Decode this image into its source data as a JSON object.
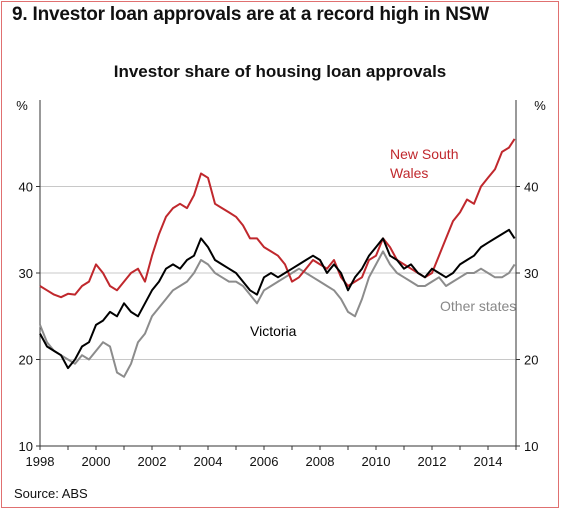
{
  "headline": "9. Investor loan approvals are at a record high in NSW",
  "source": "Source: ABS",
  "chart_data": {
    "type": "line",
    "title": "Investor share of housing loan approvals",
    "y_unit_left": "%",
    "y_unit_right": "%",
    "ylim": [
      10,
      50
    ],
    "yticks": [
      10,
      20,
      30,
      40
    ],
    "xlim": [
      1998,
      2015
    ],
    "xticks": [
      "1998",
      "2000",
      "2002",
      "2004",
      "2006",
      "2008",
      "2010",
      "2012",
      "2014"
    ],
    "grid": true,
    "colors": {
      "nsw": "#c0282d",
      "vic": "#000000",
      "other": "#8c8c8c",
      "grid": "#c8c8c8"
    },
    "labels": {
      "nsw": [
        "New South",
        "Wales"
      ],
      "vic": "Victoria",
      "other": "Other states"
    },
    "series": [
      {
        "name": "New South Wales",
        "x": [
          1998.0,
          1998.25,
          1998.5,
          1998.75,
          1999.0,
          1999.25,
          1999.5,
          1999.75,
          2000.0,
          2000.25,
          2000.5,
          2000.75,
          2001.0,
          2001.25,
          2001.5,
          2001.75,
          2002.0,
          2002.25,
          2002.5,
          2002.75,
          2003.0,
          2003.25,
          2003.5,
          2003.75,
          2004.0,
          2004.25,
          2004.5,
          2004.75,
          2005.0,
          2005.25,
          2005.5,
          2005.75,
          2006.0,
          2006.25,
          2006.5,
          2006.75,
          2007.0,
          2007.25,
          2007.5,
          2007.75,
          2008.0,
          2008.25,
          2008.5,
          2008.75,
          2009.0,
          2009.25,
          2009.5,
          2009.75,
          2010.0,
          2010.25,
          2010.5,
          2010.75,
          2011.0,
          2011.25,
          2011.5,
          2011.75,
          2012.0,
          2012.25,
          2012.5,
          2012.75,
          2013.0,
          2013.25,
          2013.5,
          2013.75,
          2014.0,
          2014.25,
          2014.5,
          2014.75,
          2014.95
        ],
        "values": [
          28.5,
          28.0,
          27.5,
          27.2,
          27.6,
          27.5,
          28.5,
          29.0,
          31.0,
          30.0,
          28.5,
          28.0,
          29.0,
          30.0,
          30.5,
          29.0,
          32.0,
          34.5,
          36.5,
          37.5,
          38.0,
          37.5,
          39.0,
          41.5,
          41.0,
          38.0,
          37.5,
          37.0,
          36.5,
          35.5,
          34.0,
          34.0,
          33.0,
          32.5,
          32.0,
          31.0,
          29.0,
          29.5,
          30.5,
          31.5,
          31.0,
          30.5,
          31.5,
          29.5,
          28.5,
          29.0,
          29.5,
          31.5,
          32.0,
          34.0,
          33.0,
          31.5,
          31.0,
          30.5,
          30.0,
          29.5,
          30.0,
          32.0,
          34.0,
          36.0,
          37.0,
          38.5,
          38.0,
          40.0,
          41.0,
          42.0,
          44.0,
          44.5,
          45.5
        ]
      },
      {
        "name": "Victoria",
        "x": [
          1998.0,
          1998.25,
          1998.5,
          1998.75,
          1999.0,
          1999.25,
          1999.5,
          1999.75,
          2000.0,
          2000.25,
          2000.5,
          2000.75,
          2001.0,
          2001.25,
          2001.5,
          2001.75,
          2002.0,
          2002.25,
          2002.5,
          2002.75,
          2003.0,
          2003.25,
          2003.5,
          2003.75,
          2004.0,
          2004.25,
          2004.5,
          2004.75,
          2005.0,
          2005.25,
          2005.5,
          2005.75,
          2006.0,
          2006.25,
          2006.5,
          2006.75,
          2007.0,
          2007.25,
          2007.5,
          2007.75,
          2008.0,
          2008.25,
          2008.5,
          2008.75,
          2009.0,
          2009.25,
          2009.5,
          2009.75,
          2010.0,
          2010.25,
          2010.5,
          2010.75,
          2011.0,
          2011.25,
          2011.5,
          2011.75,
          2012.0,
          2012.25,
          2012.5,
          2012.75,
          2013.0,
          2013.25,
          2013.5,
          2013.75,
          2014.0,
          2014.25,
          2014.5,
          2014.75,
          2014.95
        ],
        "values": [
          23.0,
          21.5,
          21.0,
          20.5,
          19.0,
          20.0,
          21.5,
          22.0,
          24.0,
          24.5,
          25.5,
          25.0,
          26.5,
          25.5,
          25.0,
          26.5,
          28.0,
          29.0,
          30.5,
          31.0,
          30.5,
          31.5,
          32.0,
          34.0,
          33.0,
          31.5,
          31.0,
          30.5,
          30.0,
          29.0,
          28.0,
          27.5,
          29.5,
          30.0,
          29.5,
          30.0,
          30.5,
          31.0,
          31.5,
          32.0,
          31.5,
          30.0,
          31.0,
          30.0,
          28.0,
          29.5,
          30.5,
          32.0,
          33.0,
          34.0,
          32.0,
          31.5,
          30.5,
          31.0,
          30.0,
          29.5,
          30.5,
          30.0,
          29.5,
          30.0,
          31.0,
          31.5,
          32.0,
          33.0,
          33.5,
          34.0,
          34.5,
          35.0,
          34.0
        ]
      },
      {
        "name": "Other states",
        "x": [
          1998.0,
          1998.25,
          1998.5,
          1998.75,
          1999.0,
          1999.25,
          1999.5,
          1999.75,
          2000.0,
          2000.25,
          2000.5,
          2000.75,
          2001.0,
          2001.25,
          2001.5,
          2001.75,
          2002.0,
          2002.25,
          2002.5,
          2002.75,
          2003.0,
          2003.25,
          2003.5,
          2003.75,
          2004.0,
          2004.25,
          2004.5,
          2004.75,
          2005.0,
          2005.25,
          2005.5,
          2005.75,
          2006.0,
          2006.25,
          2006.5,
          2006.75,
          2007.0,
          2007.25,
          2007.5,
          2007.75,
          2008.0,
          2008.25,
          2008.5,
          2008.75,
          2009.0,
          2009.25,
          2009.5,
          2009.75,
          2010.0,
          2010.25,
          2010.5,
          2010.75,
          2011.0,
          2011.25,
          2011.5,
          2011.75,
          2012.0,
          2012.25,
          2012.5,
          2012.75,
          2013.0,
          2013.25,
          2013.5,
          2013.75,
          2014.0,
          2014.25,
          2014.5,
          2014.75,
          2014.95
        ],
        "values": [
          24.0,
          22.0,
          21.0,
          20.5,
          20.0,
          19.5,
          20.5,
          20.0,
          21.0,
          22.0,
          21.5,
          18.5,
          18.0,
          19.5,
          22.0,
          23.0,
          25.0,
          26.0,
          27.0,
          28.0,
          28.5,
          29.0,
          30.0,
          31.5,
          31.0,
          30.0,
          29.5,
          29.0,
          29.0,
          28.5,
          27.5,
          26.5,
          28.0,
          28.5,
          29.0,
          29.5,
          30.0,
          30.5,
          30.0,
          29.5,
          29.0,
          28.5,
          28.0,
          27.0,
          25.5,
          25.0,
          27.0,
          29.5,
          31.0,
          32.5,
          31.0,
          30.0,
          29.5,
          29.0,
          28.5,
          28.5,
          29.0,
          29.5,
          28.5,
          29.0,
          29.5,
          30.0,
          30.0,
          30.5,
          30.0,
          29.5,
          29.5,
          30.0,
          31.0
        ]
      }
    ]
  }
}
